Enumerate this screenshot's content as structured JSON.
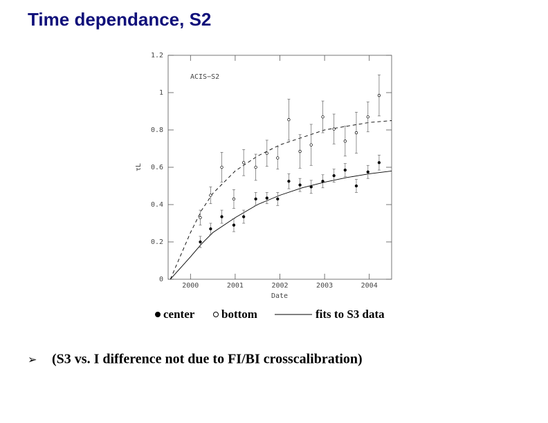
{
  "title": "Time dependance, S2",
  "chart_data": {
    "type": "scatter",
    "annotation": "ACIS−S2",
    "x_label": "Date",
    "y_label": "τL",
    "xlim": [
      1999.5,
      2004.5
    ],
    "ylim": [
      0,
      1.2
    ],
    "xticks": [
      2000,
      2001,
      2002,
      2003,
      2004
    ],
    "yticks": [
      0,
      0.2,
      0.4,
      0.6,
      0.8,
      1,
      1.2
    ],
    "x": [
      2000.22,
      2000.45,
      2000.7,
      2000.97,
      2001.19,
      2001.46,
      2001.71,
      2001.95,
      2002.2,
      2002.45,
      2002.7,
      2002.96,
      2003.21,
      2003.46,
      2003.71,
      2003.97,
      2004.22
    ],
    "series": [
      {
        "name": "center",
        "color": "#000000",
        "marker": "filled",
        "values": [
          0.2,
          0.27,
          0.335,
          0.29,
          0.335,
          0.43,
          0.435,
          0.43,
          0.525,
          0.505,
          0.495,
          0.525,
          0.555,
          0.585,
          0.5,
          0.575,
          0.625
        ],
        "errors": [
          0.03,
          0.03,
          0.035,
          0.035,
          0.035,
          0.035,
          0.03,
          0.035,
          0.04,
          0.035,
          0.035,
          0.035,
          0.035,
          0.035,
          0.035,
          0.035,
          0.04
        ]
      },
      {
        "name": "bottom",
        "color": "#000000",
        "marker": "open",
        "values": [
          0.33,
          0.45,
          0.6,
          0.43,
          0.625,
          0.6,
          0.675,
          0.65,
          0.855,
          0.685,
          0.72,
          0.87,
          0.805,
          0.74,
          0.785,
          0.87,
          0.985
        ],
        "errors": [
          0.04,
          0.045,
          0.08,
          0.05,
          0.07,
          0.07,
          0.07,
          0.06,
          0.11,
          0.09,
          0.11,
          0.085,
          0.08,
          0.08,
          0.11,
          0.08,
          0.11
        ]
      }
    ],
    "fit_curves": [
      {
        "name": "fits to S3 data",
        "style": "solid",
        "color": "#000000",
        "x": [
          1999.55,
          2000,
          2000.25,
          2000.5,
          2001,
          2001.5,
          2002,
          2002.5,
          2003,
          2003.5,
          2004,
          2004.5
        ],
        "values": [
          0,
          0.12,
          0.19,
          0.25,
          0.33,
          0.4,
          0.45,
          0.49,
          0.52,
          0.545,
          0.565,
          0.58
        ]
      },
      {
        "style": "dashed",
        "color": "#000000",
        "x": [
          1999.55,
          2000,
          2000.25,
          2000.5,
          2001,
          2001.5,
          2002,
          2002.5,
          2003,
          2003.5,
          2004,
          2004.5
        ],
        "values": [
          0,
          0.25,
          0.37,
          0.46,
          0.58,
          0.66,
          0.72,
          0.76,
          0.8,
          0.82,
          0.84,
          0.85
        ]
      }
    ]
  },
  "bullet": "(S3 vs. I difference not due to FI/BI crosscalibration)"
}
